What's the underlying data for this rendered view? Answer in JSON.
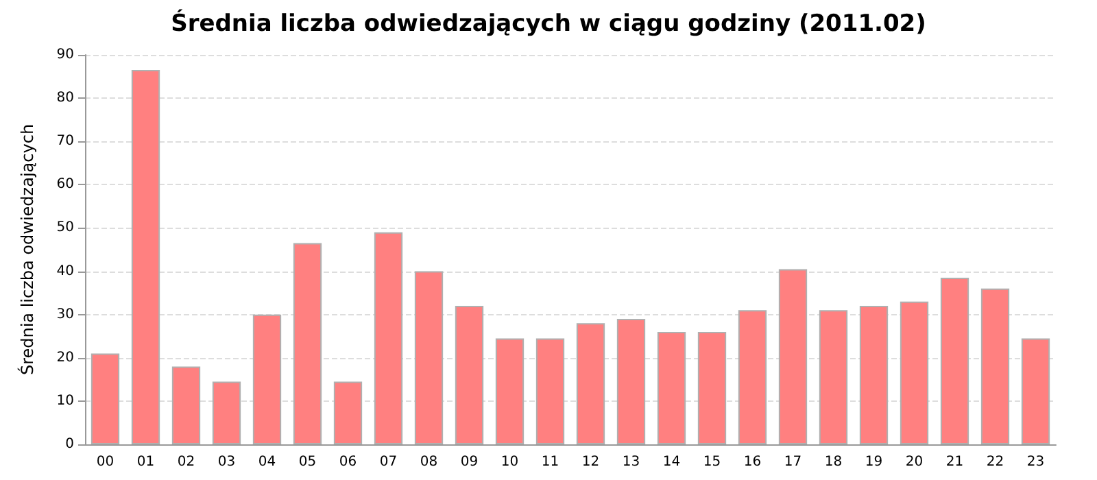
{
  "chart_data": {
    "type": "bar",
    "title": "Średnia liczba odwiedzających w ciągu godziny (2011.02)",
    "ylabel": "Średnia liczba odwiedzających",
    "categories": [
      "00",
      "01",
      "02",
      "03",
      "04",
      "05",
      "06",
      "07",
      "08",
      "09",
      "10",
      "11",
      "12",
      "13",
      "14",
      "15",
      "16",
      "17",
      "18",
      "19",
      "20",
      "21",
      "22",
      "23"
    ],
    "values": [
      21,
      86.5,
      18,
      14.5,
      30,
      46.5,
      14.5,
      49,
      40,
      32,
      24.5,
      24.5,
      28,
      29,
      26,
      26,
      31,
      40.5,
      31,
      32,
      33,
      38.5,
      36,
      24.5
    ],
    "color": "#ff8080",
    "ylim": [
      0,
      90
    ],
    "yticks": [
      0,
      10,
      20,
      30,
      40,
      50,
      60,
      70,
      80,
      90
    ],
    "grid": "y"
  }
}
